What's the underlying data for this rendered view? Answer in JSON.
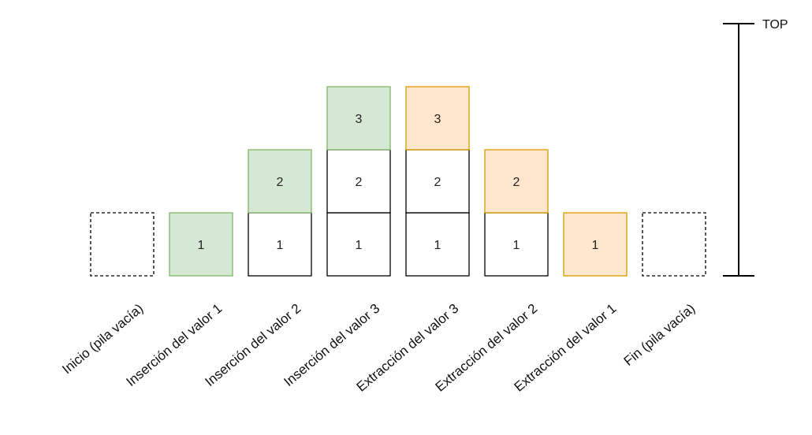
{
  "colors": {
    "push_fill": "#d5e8d4",
    "push_stroke": "#82b366",
    "pop_fill": "#ffe6cc",
    "pop_stroke": "#d79b00",
    "plain_fill": "#ffffff",
    "plain_stroke": "#000000"
  },
  "axis": {
    "top_label": "TOP"
  },
  "steps": [
    {
      "label": "Inicio (pila vacía)",
      "stack": [],
      "empty": true
    },
    {
      "label": "Inserción del valor 1",
      "stack": [
        {
          "value": "1",
          "style": "push"
        }
      ]
    },
    {
      "label": "Inserción del valor 2",
      "stack": [
        {
          "value": "1",
          "style": "plain"
        },
        {
          "value": "2",
          "style": "push"
        }
      ]
    },
    {
      "label": "Inserción del valor 3",
      "stack": [
        {
          "value": "1",
          "style": "plain"
        },
        {
          "value": "2",
          "style": "plain"
        },
        {
          "value": "3",
          "style": "push"
        }
      ]
    },
    {
      "label": "Extracción del valor 3",
      "stack": [
        {
          "value": "1",
          "style": "plain"
        },
        {
          "value": "2",
          "style": "plain"
        },
        {
          "value": "3",
          "style": "pop"
        }
      ]
    },
    {
      "label": "Extracción del valor 2",
      "stack": [
        {
          "value": "1",
          "style": "plain"
        },
        {
          "value": "2",
          "style": "pop"
        }
      ]
    },
    {
      "label": "Extracción del valor 1",
      "stack": [
        {
          "value": "1",
          "style": "pop"
        }
      ]
    },
    {
      "label": "Fin (pila vacía)",
      "stack": [],
      "empty": true
    }
  ]
}
